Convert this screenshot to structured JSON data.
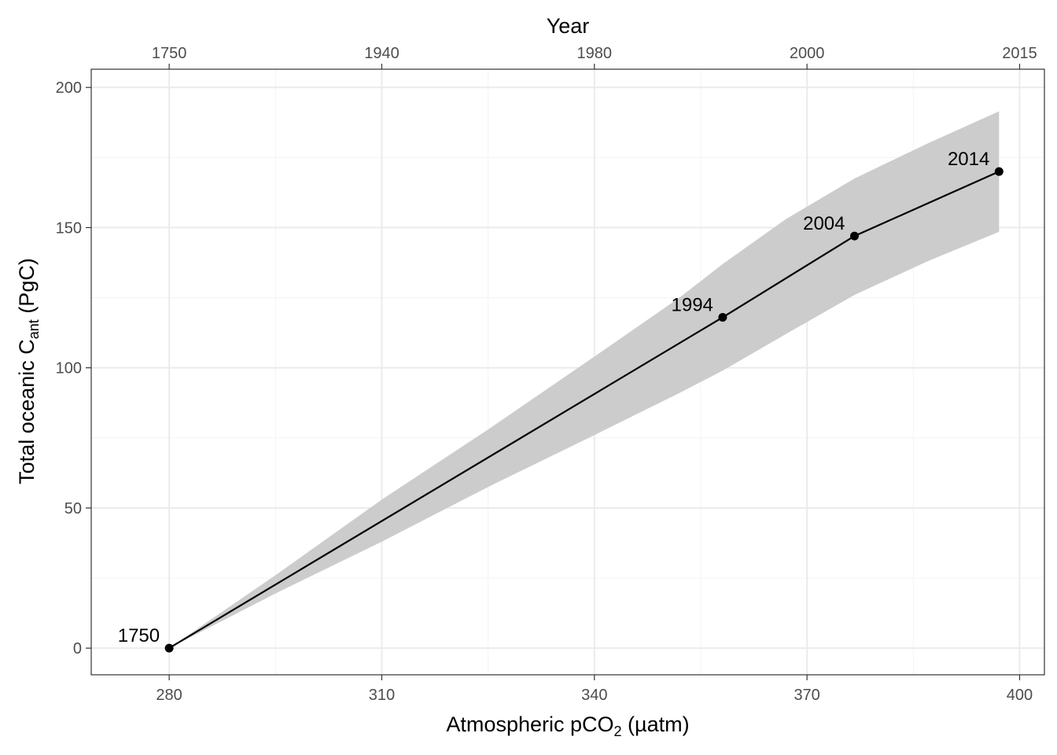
{
  "chart_data": {
    "type": "line",
    "xlabel": {
      "main": "Atmospheric pCO",
      "sub": "2",
      "rest": " (µatm)"
    },
    "ylabel": {
      "main": "Total oceanic C",
      "sub": "ant",
      "rest": " (PgC)"
    },
    "x2label": "Year",
    "xlim": [
      269,
      403.5
    ],
    "ylim": [
      -9.5,
      206.5
    ],
    "x_ticks": [
      280,
      310,
      340,
      370,
      400
    ],
    "x_tick_labels": [
      "280",
      "310",
      "340",
      "370",
      "400"
    ],
    "y_ticks": [
      0,
      50,
      100,
      150,
      200
    ],
    "y_tick_labels": [
      "0",
      "50",
      "100",
      "150",
      "200"
    ],
    "x2_ticks": [
      280,
      310,
      340,
      370,
      400
    ],
    "x2_tick_labels": [
      "1750",
      "1940",
      "1980",
      "2000",
      "2015"
    ],
    "grid": true,
    "series": [
      {
        "x": [
          280,
          358.1,
          376.7,
          397.1
        ],
        "y": [
          0,
          118,
          147,
          170
        ],
        "labels": [
          "1750",
          "1994",
          "2004",
          "2014"
        ],
        "band_x": [
          280,
          295,
          310,
          325,
          340,
          352,
          358.1,
          367,
          376.7,
          387,
          397.1
        ],
        "band_lower": [
          0,
          19.5,
          38,
          57.5,
          76,
          91,
          99,
          112,
          126,
          138,
          148.5
        ],
        "band_upper": [
          0,
          26,
          53,
          78,
          104,
          125,
          137,
          153,
          167.5,
          180,
          191.5
        ]
      }
    ],
    "colors": {
      "line": "#000000",
      "band": "#cccccc",
      "grid_major": "#ebebeb",
      "grid_minor": "#f3f3f3",
      "panel_border": "#333333",
      "tick_label": "#4d4d4d"
    }
  }
}
